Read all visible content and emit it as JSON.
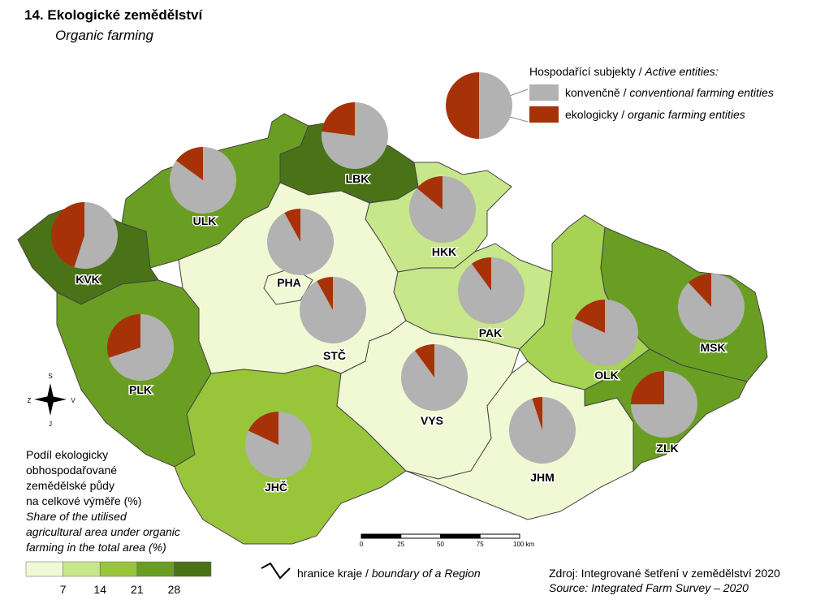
{
  "header": {
    "title": "14. Ekologické zemědělství",
    "subtitle": "Organic farming"
  },
  "pie_legend": {
    "title_cz": "Hospodařící subjekty /",
    "title_en": "Active entities:",
    "values": [
      50,
      50
    ],
    "series": [
      {
        "name_cz": "konvenčně /",
        "name_en": "conventional farming entities",
        "color": "#b2b2b2"
      },
      {
        "name_cz": "ekologicky /",
        "name_en": "organic farming entities",
        "color": "#a83208"
      }
    ]
  },
  "regions": [
    {
      "name": "KVK",
      "color": "#4a7318",
      "values": [
        55,
        45
      ]
    },
    {
      "name": "ULK",
      "color": "#6a9e22",
      "values": [
        85,
        15
      ]
    },
    {
      "name": "LBK",
      "color": "#4a7318",
      "values": [
        77,
        23
      ]
    },
    {
      "name": "HKK",
      "color": "#c8e68a",
      "values": [
        86,
        14
      ]
    },
    {
      "name": "PHA",
      "color": "#f0f9d4",
      "values": [
        92,
        8
      ]
    },
    {
      "name": "STČ",
      "color": "#f0f9d4",
      "values": [
        92,
        8
      ]
    },
    {
      "name": "PAK",
      "color": "#c8e68a",
      "values": [
        90,
        10
      ]
    },
    {
      "name": "PLK",
      "color": "#6a9e22",
      "values": [
        70,
        30
      ]
    },
    {
      "name": "VYS",
      "color": "#f0f9d4",
      "values": [
        90,
        10
      ]
    },
    {
      "name": "JHČ",
      "color": "#98c53a",
      "values": [
        82,
        18
      ]
    },
    {
      "name": "JHM",
      "color": "#f0f9d4",
      "values": [
        95,
        5
      ]
    },
    {
      "name": "OLK",
      "color": "#a6d354",
      "values": [
        82,
        18
      ]
    },
    {
      "name": "MSK",
      "color": "#6a9e22",
      "values": [
        88,
        12
      ]
    },
    {
      "name": "ZLK",
      "color": "#6a9e22",
      "values": [
        75,
        25
      ]
    }
  ],
  "choropleth_legend": {
    "lines_cz": [
      "Podíl ekologicky",
      "obhospodařované",
      "zemědělské půdy",
      "na celkové výměře (%)"
    ],
    "lines_en": [
      "Share of the utilised",
      "agricultural area under organic",
      "farming in the total area (%)"
    ],
    "colors": [
      "#f0f9d4",
      "#c8e68a",
      "#98c53a",
      "#6a9e22",
      "#4a7318"
    ],
    "breaks": [
      7,
      14,
      21,
      28
    ]
  },
  "boundary_legend": {
    "label_cz": "hranice kraje /",
    "label_en": "boundary of a Region"
  },
  "scale_bar": {
    "ticks": [
      0,
      25,
      50,
      75,
      {
        "value": 100,
        "label": "100 km"
      }
    ]
  },
  "compass": {
    "north": "S",
    "west": "Z",
    "east": "V",
    "south": "J"
  },
  "source": {
    "cz": "Zdroj: Integrované šetření v zemědělství 2020",
    "en": "Source: Integrated Farm Survey – 2020"
  }
}
